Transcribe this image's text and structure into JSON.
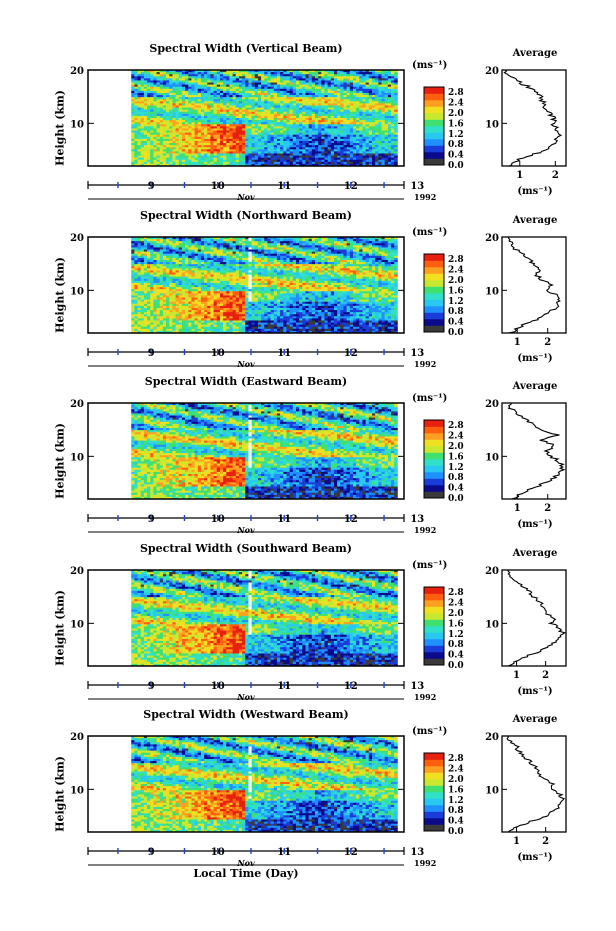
{
  "chart_data": [
    {
      "type": "heatmap",
      "title": "Spectral Width (Vertical Beam)",
      "ylabel": "Height (km)",
      "yticks": [
        "10",
        "20"
      ],
      "xticks": [
        "9",
        "10",
        "11",
        "12",
        "13"
      ],
      "month": "Nov",
      "year": "1992",
      "colorbar_unit": "(ms⁻¹)",
      "colorbar_ticks": [
        "0.0",
        "0.4",
        "0.8",
        "1.2",
        "1.6",
        "2.0",
        "2.4",
        "2.8"
      ],
      "colorbar_range": [
        0.0,
        3.0
      ],
      "ylim": [
        2,
        20
      ],
      "xlim": [
        8.55,
        13.3
      ],
      "data_start_day": 9.2,
      "average_title": "Average",
      "average_unit": "(ms⁻¹)",
      "average_xticks": [
        "1",
        "2"
      ],
      "average_xlim": [
        0.5,
        2.3
      ],
      "average_profile": {
        "height_km": [
          2,
          3,
          4,
          5,
          6,
          7,
          8,
          9,
          10,
          11,
          12,
          13,
          14,
          15,
          16,
          17,
          18,
          19,
          20
        ],
        "value": [
          0.8,
          0.9,
          1.3,
          1.7,
          1.9,
          2.0,
          2.1,
          2.05,
          1.9,
          2.0,
          1.8,
          1.7,
          1.65,
          1.6,
          1.5,
          1.2,
          0.9,
          0.7,
          0.6
        ]
      }
    },
    {
      "type": "heatmap",
      "title": "Spectral Width (Northward Beam)",
      "ylabel": "Height (km)",
      "yticks": [
        "10",
        "20"
      ],
      "xticks": [
        "9",
        "10",
        "11",
        "12",
        "13"
      ],
      "month": "Nov",
      "year": "1992",
      "colorbar_unit": "(ms⁻¹)",
      "colorbar_ticks": [
        "0.0",
        "0.4",
        "0.8",
        "1.2",
        "1.6",
        "2.0",
        "2.4",
        "2.8"
      ],
      "colorbar_range": [
        0.0,
        3.0
      ],
      "ylim": [
        2,
        20
      ],
      "xlim": [
        8.55,
        13.3
      ],
      "data_start_day": 9.2,
      "average_title": "Average",
      "average_unit": "(ms⁻¹)",
      "average_xticks": [
        "1",
        "2"
      ],
      "average_xlim": [
        0.5,
        2.6
      ],
      "average_profile": {
        "height_km": [
          2,
          3,
          4,
          5,
          6,
          7,
          8,
          9,
          10,
          11,
          12,
          13,
          14,
          15,
          16,
          17,
          18,
          19,
          20
        ],
        "value": [
          0.8,
          1.0,
          1.4,
          1.8,
          2.1,
          2.3,
          2.4,
          2.3,
          2.0,
          2.1,
          1.8,
          1.6,
          1.7,
          1.5,
          1.4,
          1.1,
          0.9,
          0.8,
          0.7
        ]
      }
    },
    {
      "type": "heatmap",
      "title": "Spectral Width (Eastward Beam)",
      "ylabel": "Height (km)",
      "yticks": [
        "10",
        "20"
      ],
      "xticks": [
        "9",
        "10",
        "11",
        "12",
        "13"
      ],
      "month": "Nov",
      "year": "1992",
      "colorbar_unit": "(ms⁻¹)",
      "colorbar_ticks": [
        "0.0",
        "0.4",
        "0.8",
        "1.2",
        "1.6",
        "2.0",
        "2.4",
        "2.8"
      ],
      "colorbar_range": [
        0.0,
        3.0
      ],
      "ylim": [
        2,
        20
      ],
      "xlim": [
        8.55,
        13.3
      ],
      "data_start_day": 9.2,
      "average_title": "Average",
      "average_unit": "(ms⁻¹)",
      "average_xticks": [
        "1",
        "2"
      ],
      "average_xlim": [
        0.5,
        2.6
      ],
      "average_profile": {
        "height_km": [
          2,
          3,
          4,
          5,
          6,
          7,
          8,
          9,
          10,
          11,
          12,
          13,
          14,
          15,
          16,
          17,
          18,
          19,
          20
        ],
        "value": [
          0.9,
          1.1,
          1.5,
          1.9,
          2.2,
          2.4,
          2.5,
          2.4,
          2.1,
          2.0,
          2.2,
          1.8,
          2.3,
          1.7,
          1.5,
          1.3,
          1.0,
          0.8,
          0.8
        ]
      }
    },
    {
      "type": "heatmap",
      "title": "Spectral Width (Southward Beam)",
      "ylabel": "Height (km)",
      "yticks": [
        "10",
        "20"
      ],
      "xticks": [
        "9",
        "10",
        "11",
        "12",
        "13"
      ],
      "month": "Nov",
      "year": "1992",
      "colorbar_unit": "(ms⁻¹)",
      "colorbar_ticks": [
        "0.0",
        "0.4",
        "0.8",
        "1.2",
        "1.6",
        "2.0",
        "2.4",
        "2.8"
      ],
      "colorbar_range": [
        0.0,
        3.0
      ],
      "ylim": [
        2,
        20
      ],
      "xlim": [
        8.55,
        13.3
      ],
      "data_start_day": 9.2,
      "average_title": "Average",
      "average_unit": "(ms⁻¹)",
      "average_xticks": [
        "1",
        "2"
      ],
      "average_xlim": [
        0.5,
        2.7
      ],
      "average_profile": {
        "height_km": [
          2,
          3,
          4,
          5,
          6,
          7,
          8,
          9,
          10,
          11,
          12,
          13,
          14,
          15,
          16,
          17,
          18,
          19,
          20
        ],
        "value": [
          0.8,
          1.0,
          1.4,
          1.9,
          2.2,
          2.4,
          2.6,
          2.5,
          2.2,
          2.3,
          2.0,
          1.9,
          1.8,
          1.6,
          1.4,
          1.2,
          1.0,
          0.8,
          0.7
        ]
      }
    },
    {
      "type": "heatmap",
      "title": "Spectral Width (Westward Beam)",
      "ylabel": "Height (km)",
      "yticks": [
        "10",
        "20"
      ],
      "xticks": [
        "9",
        "10",
        "11",
        "12",
        "13"
      ],
      "month": "Nov",
      "year": "1992",
      "colorbar_unit": "(ms⁻¹)",
      "colorbar_ticks": [
        "0.0",
        "0.4",
        "0.8",
        "1.2",
        "1.6",
        "2.0",
        "2.4",
        "2.8"
      ],
      "colorbar_range": [
        0.0,
        3.0
      ],
      "ylim": [
        2,
        20
      ],
      "xlim": [
        8.55,
        13.3
      ],
      "data_start_day": 9.2,
      "average_title": "Average",
      "average_unit": "(ms⁻¹)",
      "average_xticks": [
        "1",
        "2"
      ],
      "average_xlim": [
        0.5,
        2.7
      ],
      "average_profile": {
        "height_km": [
          2,
          3,
          4,
          5,
          6,
          7,
          8,
          9,
          10,
          11,
          12,
          13,
          14,
          15,
          16,
          17,
          18,
          19,
          20
        ],
        "value": [
          0.8,
          1.0,
          1.5,
          2.0,
          2.3,
          2.5,
          2.6,
          2.5,
          2.2,
          2.3,
          1.9,
          1.8,
          1.7,
          1.5,
          1.3,
          1.1,
          1.0,
          0.8,
          0.7
        ]
      }
    }
  ],
  "xlabel": "Local Time (Day)",
  "colormap": [
    "#3a3a3a",
    "#0a0a8a",
    "#1a3cd8",
    "#1e90ff",
    "#28c8f0",
    "#30e0c8",
    "#40e070",
    "#c8e830",
    "#f0e020",
    "#ffa020",
    "#ff6010",
    "#e82010"
  ]
}
